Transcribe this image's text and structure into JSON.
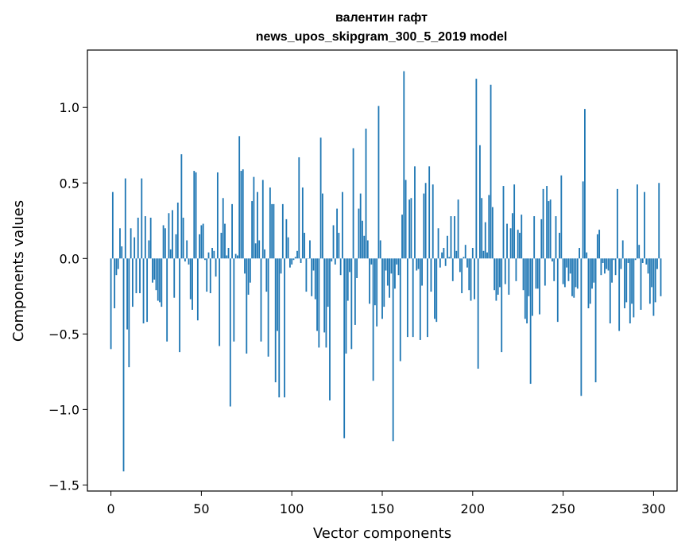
{
  "chart_data": {
    "type": "bar",
    "title": "валентин гафт",
    "subtitle": "news_upos_skipgram_300_5_2019 model",
    "xlabel": "Vector components",
    "ylabel": "Components values",
    "xlim": [
      -13,
      313
    ],
    "ylim": [
      -1.54,
      1.38
    ],
    "xticks": [
      0,
      50,
      100,
      150,
      200,
      250,
      300
    ],
    "xtick_labels": [
      "0",
      "50",
      "100",
      "150",
      "200",
      "250",
      "300"
    ],
    "yticks": [
      -1.5,
      -1.0,
      -0.5,
      0.0,
      0.5,
      1.0
    ],
    "ytick_labels": [
      "−1.5",
      "−1.0",
      "−0.5",
      "0.0",
      "0.5",
      "1.0"
    ],
    "bar_color": "#1f77b4",
    "values": [
      -0.6,
      0.44,
      -0.33,
      -0.11,
      -0.07,
      0.2,
      0.08,
      -1.41,
      0.53,
      -0.47,
      -0.72,
      0.2,
      -0.32,
      0.14,
      -0.23,
      0.27,
      -0.23,
      0.53,
      -0.43,
      0.28,
      -0.42,
      0.12,
      0.27,
      -0.16,
      -0.14,
      -0.21,
      -0.28,
      -0.29,
      -0.32,
      0.22,
      0.2,
      -0.55,
      0.3,
      0.06,
      0.32,
      -0.26,
      0.16,
      0.37,
      -0.62,
      0.69,
      0.27,
      -0.02,
      0.12,
      -0.04,
      -0.27,
      -0.34,
      0.58,
      0.57,
      -0.41,
      0.16,
      0.22,
      0.23,
      -0.01,
      -0.22,
      0.04,
      -0.23,
      0.07,
      0.05,
      -0.12,
      0.57,
      -0.58,
      0.17,
      0.4,
      0.23,
      0.02,
      0.07,
      -0.98,
      0.36,
      -0.55,
      0.03,
      0.02,
      0.81,
      0.58,
      0.59,
      -0.1,
      -0.63,
      -0.24,
      -0.16,
      0.38,
      0.54,
      0.1,
      0.44,
      0.12,
      -0.55,
      0.52,
      0.06,
      -0.22,
      -0.65,
      0.47,
      0.36,
      0.36,
      -0.82,
      -0.48,
      -0.92,
      -0.1,
      0.36,
      -0.92,
      0.26,
      0.14,
      -0.06,
      -0.04,
      -0.01,
      0.01,
      0.05,
      0.67,
      -0.03,
      0.47,
      0.17,
      -0.22,
      0.0,
      0.12,
      -0.25,
      -0.08,
      -0.27,
      -0.48,
      -0.59,
      0.8,
      0.43,
      -0.49,
      -0.59,
      -0.32,
      -0.94,
      -0.02,
      0.22,
      -0.04,
      0.33,
      0.17,
      -0.11,
      0.44,
      -1.19,
      -0.63,
      -0.28,
      -0.09,
      -0.6,
      0.73,
      -0.44,
      -0.13,
      0.33,
      0.43,
      0.25,
      0.15,
      0.86,
      0.12,
      -0.3,
      -0.04,
      -0.81,
      -0.31,
      -0.45,
      1.01,
      0.12,
      -0.4,
      -0.32,
      -0.08,
      -0.18,
      -0.26,
      -0.1,
      -1.21,
      -0.2,
      -0.04,
      -0.11,
      -0.68,
      0.29,
      1.24,
      0.52,
      -0.52,
      0.39,
      0.4,
      -0.52,
      0.61,
      -0.08,
      -0.07,
      -0.54,
      -0.18,
      0.43,
      0.5,
      -0.52,
      0.61,
      -0.22,
      0.49,
      -0.4,
      -0.42,
      0.2,
      -0.06,
      0.04,
      0.07,
      -0.05,
      0.15,
      0.01,
      0.28,
      -0.15,
      0.28,
      0.05,
      0.39,
      -0.09,
      -0.23,
      0.01,
      0.09,
      -0.06,
      -0.21,
      -0.28,
      0.07,
      -0.27,
      1.19,
      -0.73,
      0.75,
      0.4,
      0.05,
      0.24,
      0.04,
      0.42,
      1.15,
      0.34,
      -0.21,
      -0.28,
      -0.24,
      -0.19,
      -0.62,
      0.48,
      -0.17,
      0.23,
      -0.24,
      0.2,
      0.3,
      0.49,
      -0.15,
      0.19,
      0.17,
      0.29,
      -0.21,
      -0.4,
      -0.43,
      -0.25,
      -0.83,
      -0.38,
      0.28,
      -0.2,
      -0.2,
      -0.37,
      0.26,
      0.46,
      -0.18,
      0.48,
      0.38,
      0.39,
      -0.02,
      -0.15,
      0.28,
      -0.42,
      0.17,
      0.55,
      -0.17,
      -0.19,
      -0.06,
      -0.15,
      -0.1,
      -0.25,
      -0.26,
      -0.19,
      -0.2,
      0.07,
      -0.91,
      0.51,
      0.99,
      0.04,
      -0.33,
      -0.3,
      -0.2,
      -0.16,
      -0.82,
      0.16,
      0.19,
      -0.11,
      -0.03,
      -0.1,
      -0.07,
      -0.08,
      -0.43,
      -0.16,
      -0.01,
      -0.11,
      0.46,
      -0.48,
      -0.07,
      0.12,
      -0.33,
      -0.29,
      -0.03,
      -0.43,
      -0.3,
      -0.39,
      -0.01,
      0.49,
      0.09,
      -0.34,
      -0.03,
      0.44,
      -0.04,
      -0.1,
      -0.3,
      -0.19,
      -0.38,
      -0.29,
      -0.07,
      0.5,
      -0.25
    ]
  }
}
